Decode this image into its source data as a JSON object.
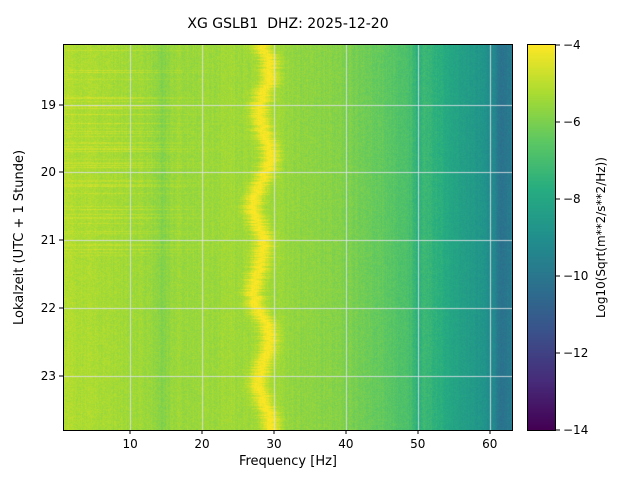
{
  "chart_data": {
    "type": "heatmap",
    "title": "XG GSLB1  DHZ: 2025-12-20",
    "xlabel": "Frequency [Hz]",
    "ylabel": "Lokalzeit (UTC + 1 Stunde)",
    "colorbar_label": "Log10(Sqrt(m**2/s**2/Hz))",
    "colormap": "viridis",
    "grid": true,
    "x_range_hz": [
      0.8,
      63.1
    ],
    "y_range_hours": [
      18.12,
      23.8
    ],
    "value_range": [
      -14,
      -4
    ],
    "x_ticks": [
      {
        "value": 10,
        "label": "10"
      },
      {
        "value": 20,
        "label": "20"
      },
      {
        "value": 30,
        "label": "30"
      },
      {
        "value": 40,
        "label": "40"
      },
      {
        "value": 50,
        "label": "50"
      },
      {
        "value": 60,
        "label": "60"
      }
    ],
    "y_ticks": [
      {
        "value": 19,
        "label": "19"
      },
      {
        "value": 20,
        "label": "20"
      },
      {
        "value": 21,
        "label": "21"
      },
      {
        "value": 22,
        "label": "22"
      },
      {
        "value": 23,
        "label": "23"
      }
    ],
    "colorbar_ticks": [
      {
        "value": -4,
        "label": "−4"
      },
      {
        "value": -6,
        "label": "−6"
      },
      {
        "value": -8,
        "label": "−8"
      },
      {
        "value": -10,
        "label": "−10"
      },
      {
        "value": -12,
        "label": "−12"
      },
      {
        "value": -14,
        "label": "−14"
      }
    ],
    "spectral_profile": {
      "freqs": [
        0.8,
        3,
        6,
        10,
        13,
        14.5,
        16,
        20,
        24,
        26.5,
        31,
        34,
        38,
        42,
        46,
        49,
        50,
        51,
        54,
        57,
        59,
        60.5,
        61.5,
        63.1
      ],
      "values": [
        -5.1,
        -5.2,
        -5.3,
        -5.4,
        -5.5,
        -5.9,
        -5.5,
        -5.5,
        -5.4,
        -5.5,
        -5.5,
        -5.7,
        -5.8,
        -6.1,
        -6.5,
        -7.0,
        -7.6,
        -7.2,
        -7.9,
        -8.4,
        -8.8,
        -9.2,
        -10.2,
        -9.8
      ],
      "band_center_hz": 28.3,
      "band_peak_amplitude": 1.5,
      "band_width_hz": 1.3
    }
  }
}
